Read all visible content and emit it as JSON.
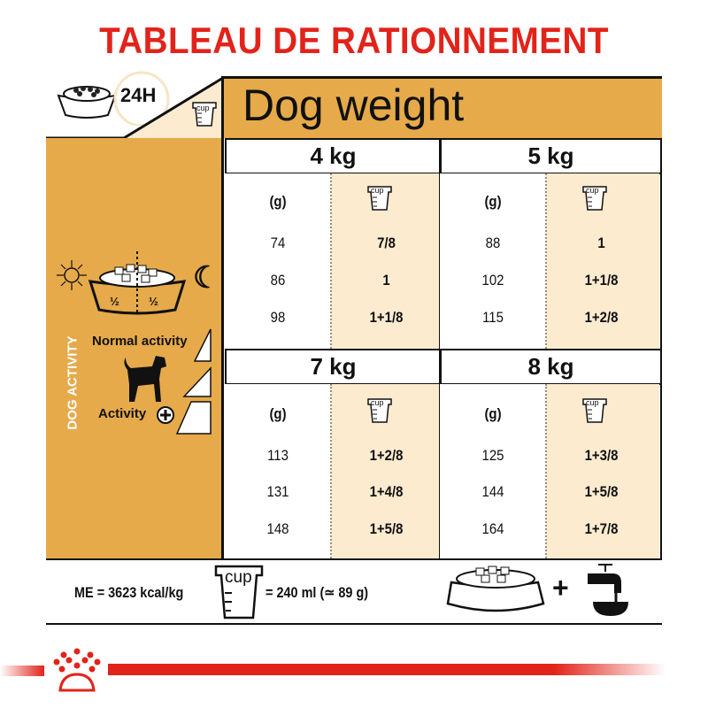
{
  "title": "TABLEAU DE RATIONNEMENT",
  "header": {
    "period": "24H",
    "dog_weight_label": "Dog weight",
    "cup_label": "cup"
  },
  "sidebar": {
    "split_label_left": "½",
    "split_label_right": "½",
    "dog_activity_label": "DOG ACTIVITY",
    "normal_activity_label": "Normal activity",
    "activity_label": "Activity"
  },
  "columns": {
    "grams_label": "(g)",
    "cup_label": "cup"
  },
  "weights": [
    {
      "label": "4 kg",
      "rows": [
        {
          "g": "74",
          "cup": "7/8"
        },
        {
          "g": "86",
          "cup": "1"
        },
        {
          "g": "98",
          "cup": "1+1/8"
        }
      ]
    },
    {
      "label": "5 kg",
      "rows": [
        {
          "g": "88",
          "cup": "1"
        },
        {
          "g": "102",
          "cup": "1+1/8"
        },
        {
          "g": "115",
          "cup": "1+2/8"
        }
      ]
    },
    {
      "label": "7 kg",
      "rows": [
        {
          "g": "113",
          "cup": "1+2/8"
        },
        {
          "g": "131",
          "cup": "1+4/8"
        },
        {
          "g": "148",
          "cup": "1+5/8"
        }
      ]
    },
    {
      "label": "8 kg",
      "rows": [
        {
          "g": "125",
          "cup": "1+3/8"
        },
        {
          "g": "144",
          "cup": "1+5/8"
        },
        {
          "g": "164",
          "cup": "1+7/8"
        }
      ]
    }
  ],
  "footer": {
    "energy": "ME = 3623 kcal/kg",
    "cup_label": "cup",
    "cup_equivalence": "= 240 ml (≃ 89 g)",
    "plus": "+"
  },
  "colors": {
    "brand_red": "#e2231a",
    "orange": "#e6aa4a",
    "cream": "#fcebcf"
  }
}
